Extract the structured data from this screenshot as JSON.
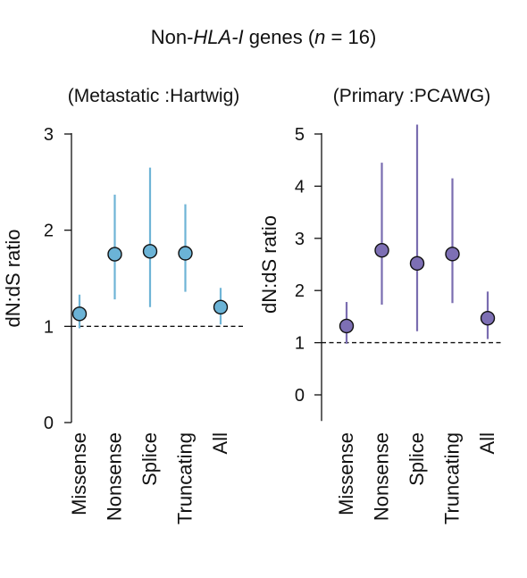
{
  "figure": {
    "title_pre": "Non-",
    "title_italic_1": "HLA-I",
    "title_mid": " genes (",
    "title_italic_2": "n",
    "title_post": " = 16)"
  },
  "chart_data": [
    {
      "type": "scatter",
      "subtitle": "(Metastatic :Hartwig)",
      "ylabel": "dN:dS ratio",
      "xlabel": "",
      "categories": [
        "Missense",
        "Nonsense",
        "Splice",
        "Truncating",
        "All"
      ],
      "ylim": [
        0,
        3
      ],
      "yticks": [
        0,
        1,
        2,
        3
      ],
      "reference_line": 1,
      "grid": false,
      "legend": "none",
      "color": "#6bb3d6",
      "line_color": "#6fb4d6",
      "series": [
        {
          "values": [
            1.13,
            1.75,
            1.78,
            1.76,
            1.2
          ],
          "lower": [
            0.98,
            1.28,
            1.2,
            1.36,
            1.02
          ],
          "upper": [
            1.33,
            2.37,
            2.65,
            2.27,
            1.4
          ]
        }
      ]
    },
    {
      "type": "scatter",
      "subtitle": "(Primary :PCAWG)",
      "ylabel": "dN:dS ratio",
      "xlabel": "",
      "categories": [
        "Missense",
        "Nonsense",
        "Splice",
        "Truncating",
        "All"
      ],
      "ylim": [
        -0.5,
        5
      ],
      "yticks": [
        0,
        1,
        2,
        3,
        4,
        5
      ],
      "reference_line": 1,
      "grid": false,
      "legend": "none",
      "color": "#7d6fb4",
      "line_color": "#7a6db0",
      "series": [
        {
          "values": [
            1.32,
            2.77,
            2.52,
            2.7,
            1.47
          ],
          "lower": [
            0.98,
            1.73,
            1.22,
            1.76,
            1.07
          ],
          "upper": [
            1.78,
            4.45,
            5.18,
            4.15,
            1.98
          ]
        }
      ]
    }
  ]
}
